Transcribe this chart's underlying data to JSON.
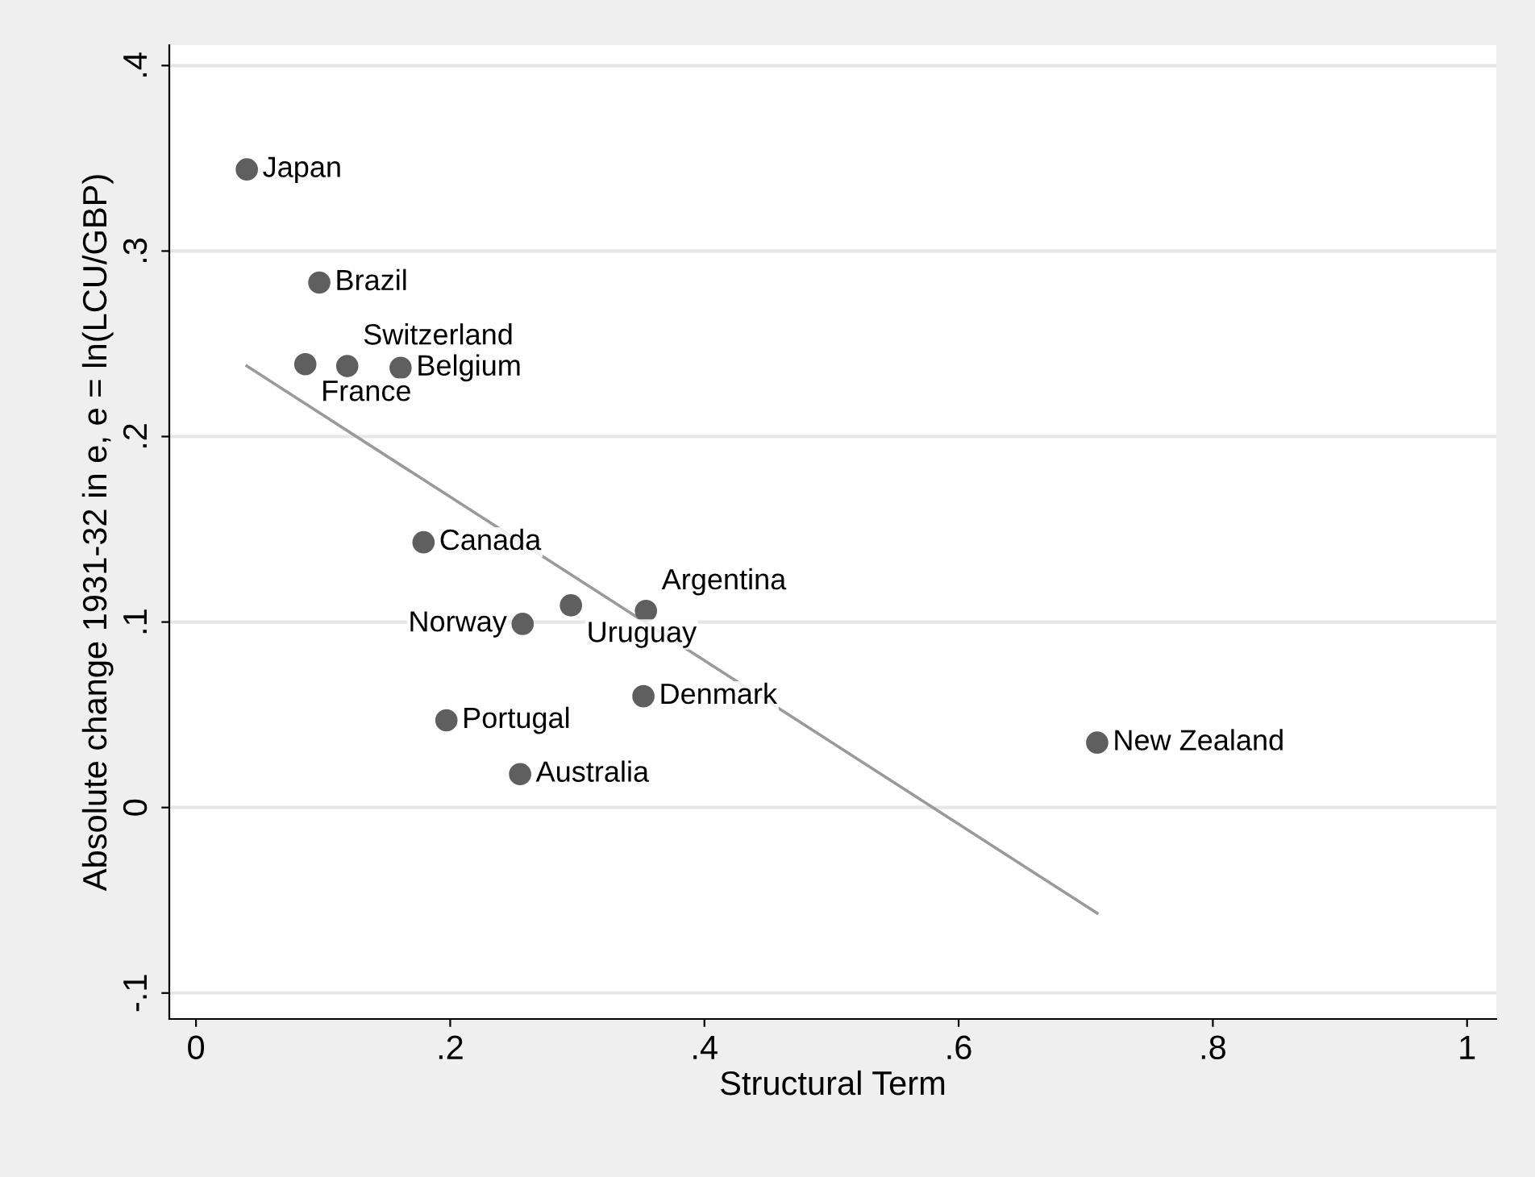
{
  "chart_data": {
    "type": "scatter",
    "xlabel": "Structural Term",
    "ylabel": "Absolute change 1931-32 in e, e = ln(LCU/GBP)",
    "xlim": [
      -0.021,
      1.023
    ],
    "ylim": [
      -0.114,
      0.411
    ],
    "xticks": [
      0,
      {
        "value": 0.2,
        "label": ".2"
      },
      {
        "value": 0.4,
        "label": ".4"
      },
      {
        "value": 0.6,
        "label": ".6"
      },
      {
        "value": 0.8,
        "label": ".8"
      },
      1
    ],
    "yticks": [
      {
        "value": -0.1,
        "label": "-.1"
      },
      0,
      {
        "value": 0.1,
        "label": ".1"
      },
      {
        "value": 0.2,
        "label": ".2"
      },
      {
        "value": 0.3,
        "label": ".3"
      },
      {
        "value": 0.4,
        "label": ".4"
      }
    ],
    "grid": "y",
    "legend": false,
    "series": [
      {
        "color": "#5f5f5f",
        "marker": "circle",
        "x": [
          0.04,
          0.097,
          0.086,
          0.119,
          0.161,
          0.179,
          0.295,
          0.354,
          0.257,
          0.352,
          0.197,
          0.255,
          0.709
        ],
        "values": [
          0.344,
          0.283,
          0.239,
          0.238,
          0.237,
          0.143,
          0.109,
          0.106,
          0.099,
          0.06,
          0.047,
          0.018,
          0.035
        ]
      },
      {
        "type": "line",
        "color": "#9a9a9a",
        "marker": "none",
        "line_style": "solid",
        "x": [
          0.04,
          0.709
        ],
        "values": [
          0.238,
          -0.057
        ]
      }
    ],
    "annotations": [
      {
        "text": "Japan",
        "x": 0.04,
        "y": 0.344
      },
      {
        "text": "Brazil",
        "x": 0.097,
        "y": 0.283
      },
      {
        "text": "France",
        "x": 0.086,
        "y": 0.239
      },
      {
        "text": "Switzerland",
        "x": 0.119,
        "y": 0.238
      },
      {
        "text": "Belgium",
        "x": 0.161,
        "y": 0.237
      },
      {
        "text": "Canada",
        "x": 0.179,
        "y": 0.143
      },
      {
        "text": "Uruguay",
        "x": 0.295,
        "y": 0.109
      },
      {
        "text": "Argentina",
        "x": 0.354,
        "y": 0.106
      },
      {
        "text": "Norway",
        "x": 0.257,
        "y": 0.099
      },
      {
        "text": "Denmark",
        "x": 0.352,
        "y": 0.06
      },
      {
        "text": "Portugal",
        "x": 0.197,
        "y": 0.047
      },
      {
        "text": "Australia",
        "x": 0.255,
        "y": 0.018
      },
      {
        "text": "New Zealand",
        "x": 0.709,
        "y": 0.035
      }
    ]
  }
}
